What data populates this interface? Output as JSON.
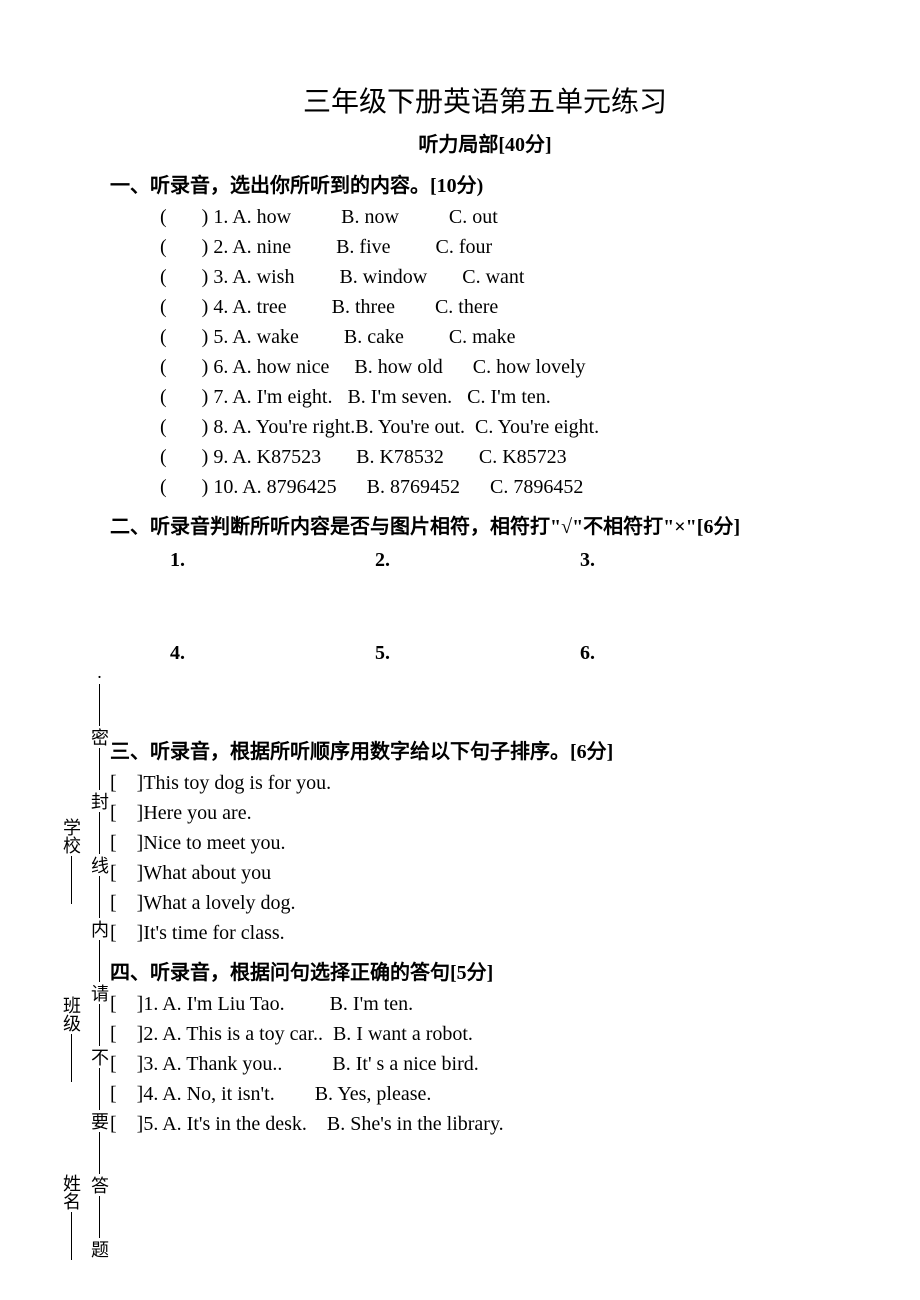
{
  "title": "三年级下册英语第五单元练习",
  "subtitle": "听力局部[40分]",
  "sections": {
    "s1": {
      "heading": "一、听录音，选出你所听到的内容。[10分)",
      "items": [
        {
          "n": "1",
          "a": "A. how",
          "b": "B. now",
          "c": "C. out"
        },
        {
          "n": "2",
          "a": "A. nine",
          "b": "B. five",
          "c": "C. four"
        },
        {
          "n": "3",
          "a": "A. wish",
          "b": "B. window",
          "c": "C. want"
        },
        {
          "n": "4",
          "a": "A. tree",
          "b": "B. three",
          "c": "C. there"
        },
        {
          "n": "5",
          "a": "A. wake",
          "b": "B. cake",
          "c": "C. make"
        },
        {
          "n": "6",
          "a": "A. how nice",
          "b": "B. how old",
          "c": "C. how lovely"
        },
        {
          "n": "7",
          "a": "A. I'm eight.",
          "b": "B. I'm seven.",
          "c": "C. I'm ten."
        },
        {
          "n": "8",
          "a": "A. You're right.",
          "b": "B. You're out.",
          "c": "C. You're eight."
        },
        {
          "n": "9",
          "a": "A. K87523",
          "b": "B. K78532",
          "c": "C. K85723"
        },
        {
          "n": "10",
          "a": "A. 8796425",
          "b": "B. 8769452",
          "c": "C. 7896452"
        }
      ]
    },
    "s2": {
      "heading": "二、听录音判断所听内容是否与图片相符，相符打\"√\"不相符打\"×\"[6分]",
      "row1": [
        "1.",
        "2.",
        "3."
      ],
      "row2": [
        "4.",
        "5.",
        "6."
      ]
    },
    "s3": {
      "heading": "三、听录音，根据所听顺序用数字给以下句子排序。[6分]",
      "items": [
        "This toy dog is for you.",
        "Here you are.",
        "Nice to meet you.",
        "What about you",
        "What a lovely dog.",
        "It's time for class."
      ]
    },
    "s4": {
      "heading": "四、听录音，根据问句选择正确的答句[5分]",
      "items": [
        {
          "n": "1",
          "a": "A. I'm Liu Tao.",
          "b": "B. I'm ten."
        },
        {
          "n": "2",
          "a": "A. This is a toy car..",
          "b": "B. I want a robot."
        },
        {
          "n": "3",
          "a": "A. Thank you..",
          "b": "B. It' s a nice bird."
        },
        {
          "n": "4",
          "a": "A. No, it isn't.",
          "b": "B. Yes, please."
        },
        {
          "n": "5",
          "a": "A. It's in the desk.",
          "b": "B. She's in the library."
        }
      ]
    }
  },
  "sidebar": {
    "right_chars": [
      "题",
      "答",
      "要",
      "不",
      "请",
      "内",
      "线",
      "封",
      "密",
      "."
    ],
    "left_labels": [
      "姓名",
      "班级",
      "学校"
    ]
  },
  "colors": {
    "text": "#000000",
    "background": "#ffffff"
  },
  "typography": {
    "title_fontsize_pt": 21,
    "body_fontsize_pt": 15,
    "font_family": "Times New Roman / SimSun"
  }
}
